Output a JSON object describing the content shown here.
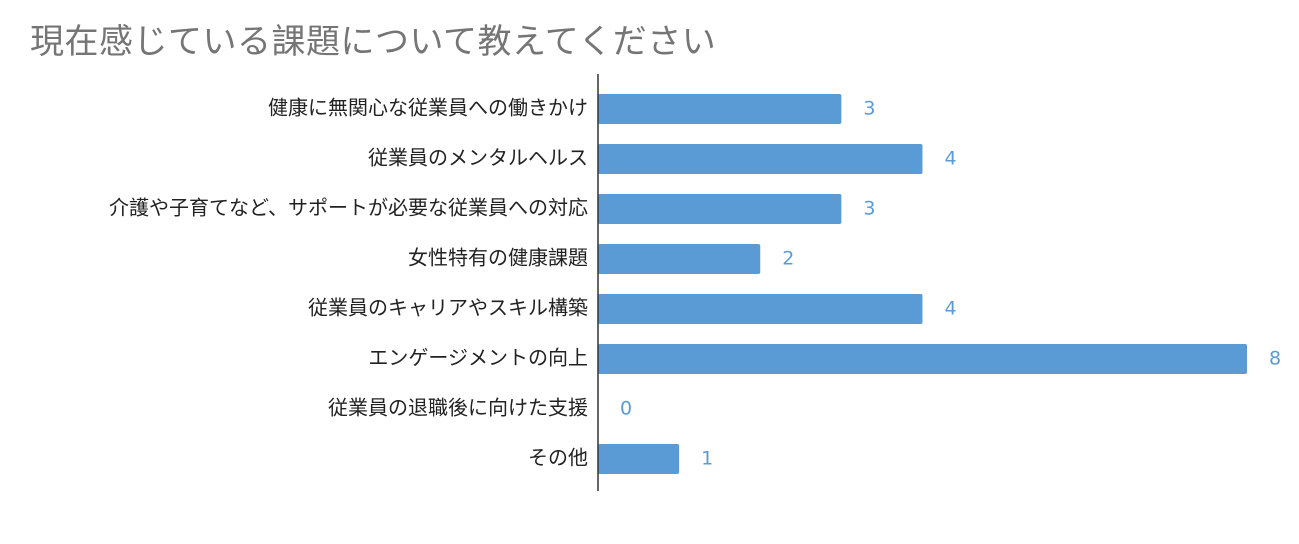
{
  "chart_data": {
    "type": "bar",
    "orientation": "horizontal",
    "title": "現在感じている課題について教えてください",
    "xlabel": "",
    "ylabel": "",
    "categories": [
      "健康に無関心な従業員への働きかけ",
      "従業員のメンタルヘルス",
      "介護や子育てなど、サポートが必要な従業員への対応",
      "女性特有の健康課題",
      "従業員のキャリアやスキル構築",
      "エンゲージメントの向上",
      "従業員の退職後に向けた支援",
      "その他"
    ],
    "values": [
      3,
      4,
      3,
      2,
      4,
      8,
      0,
      1
    ],
    "xlim": [
      0,
      8
    ],
    "grid": false,
    "legend": "none",
    "data_labels": true,
    "colors": {
      "bar": "#5b9bd5",
      "value_label": "#5b9bd5",
      "axis": "#333333",
      "title": "#757575",
      "category_label": "#222222"
    }
  }
}
